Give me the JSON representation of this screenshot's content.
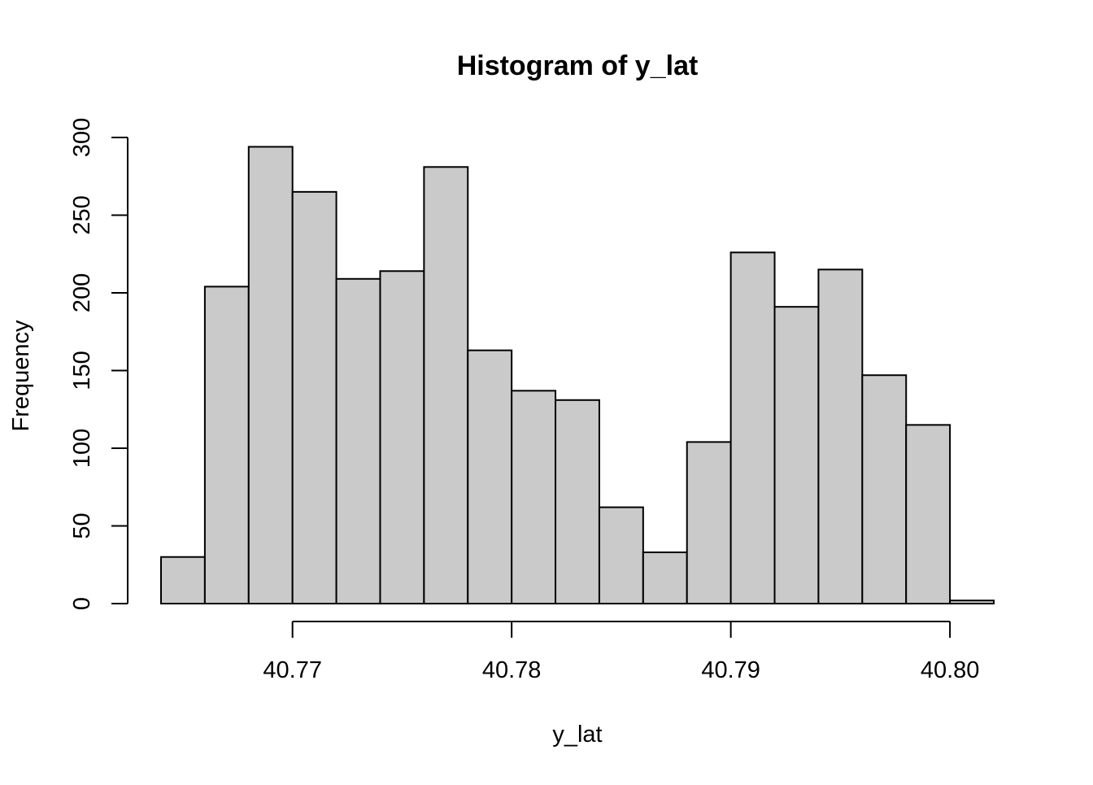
{
  "chart_data": {
    "type": "bar",
    "title": "Histogram of y_lat",
    "xlabel": "y_lat",
    "ylabel": "Frequency",
    "bins": [
      {
        "start": 40.764,
        "end": 40.766,
        "count": 30
      },
      {
        "start": 40.766,
        "end": 40.768,
        "count": 204
      },
      {
        "start": 40.768,
        "end": 40.77,
        "count": 294
      },
      {
        "start": 40.77,
        "end": 40.772,
        "count": 265
      },
      {
        "start": 40.772,
        "end": 40.774,
        "count": 209
      },
      {
        "start": 40.774,
        "end": 40.776,
        "count": 214
      },
      {
        "start": 40.776,
        "end": 40.778,
        "count": 281
      },
      {
        "start": 40.778,
        "end": 40.78,
        "count": 163
      },
      {
        "start": 40.78,
        "end": 40.782,
        "count": 137
      },
      {
        "start": 40.782,
        "end": 40.784,
        "count": 131
      },
      {
        "start": 40.784,
        "end": 40.786,
        "count": 62
      },
      {
        "start": 40.786,
        "end": 40.788,
        "count": 33
      },
      {
        "start": 40.788,
        "end": 40.79,
        "count": 104
      },
      {
        "start": 40.79,
        "end": 40.792,
        "count": 226
      },
      {
        "start": 40.792,
        "end": 40.794,
        "count": 191
      },
      {
        "start": 40.794,
        "end": 40.796,
        "count": 215
      },
      {
        "start": 40.796,
        "end": 40.798,
        "count": 147
      },
      {
        "start": 40.798,
        "end": 40.8,
        "count": 115
      },
      {
        "start": 40.8,
        "end": 40.802,
        "count": 2
      }
    ],
    "x_ticks": [
      {
        "value": 40.77,
        "label": "40.77"
      },
      {
        "value": 40.78,
        "label": "40.78"
      },
      {
        "value": 40.79,
        "label": "40.79"
      },
      {
        "value": 40.8,
        "label": "40.80"
      }
    ],
    "y_ticks": [
      {
        "value": 0,
        "label": "0"
      },
      {
        "value": 50,
        "label": "50"
      },
      {
        "value": 100,
        "label": "100"
      },
      {
        "value": 150,
        "label": "150"
      },
      {
        "value": 200,
        "label": "200"
      },
      {
        "value": 250,
        "label": "250"
      },
      {
        "value": 300,
        "label": "300"
      }
    ],
    "xlim": [
      40.764,
      40.802
    ],
    "ylim": [
      0,
      300
    ],
    "grid": false,
    "bar_fill": "#cacaca",
    "bar_stroke": "#000000"
  }
}
